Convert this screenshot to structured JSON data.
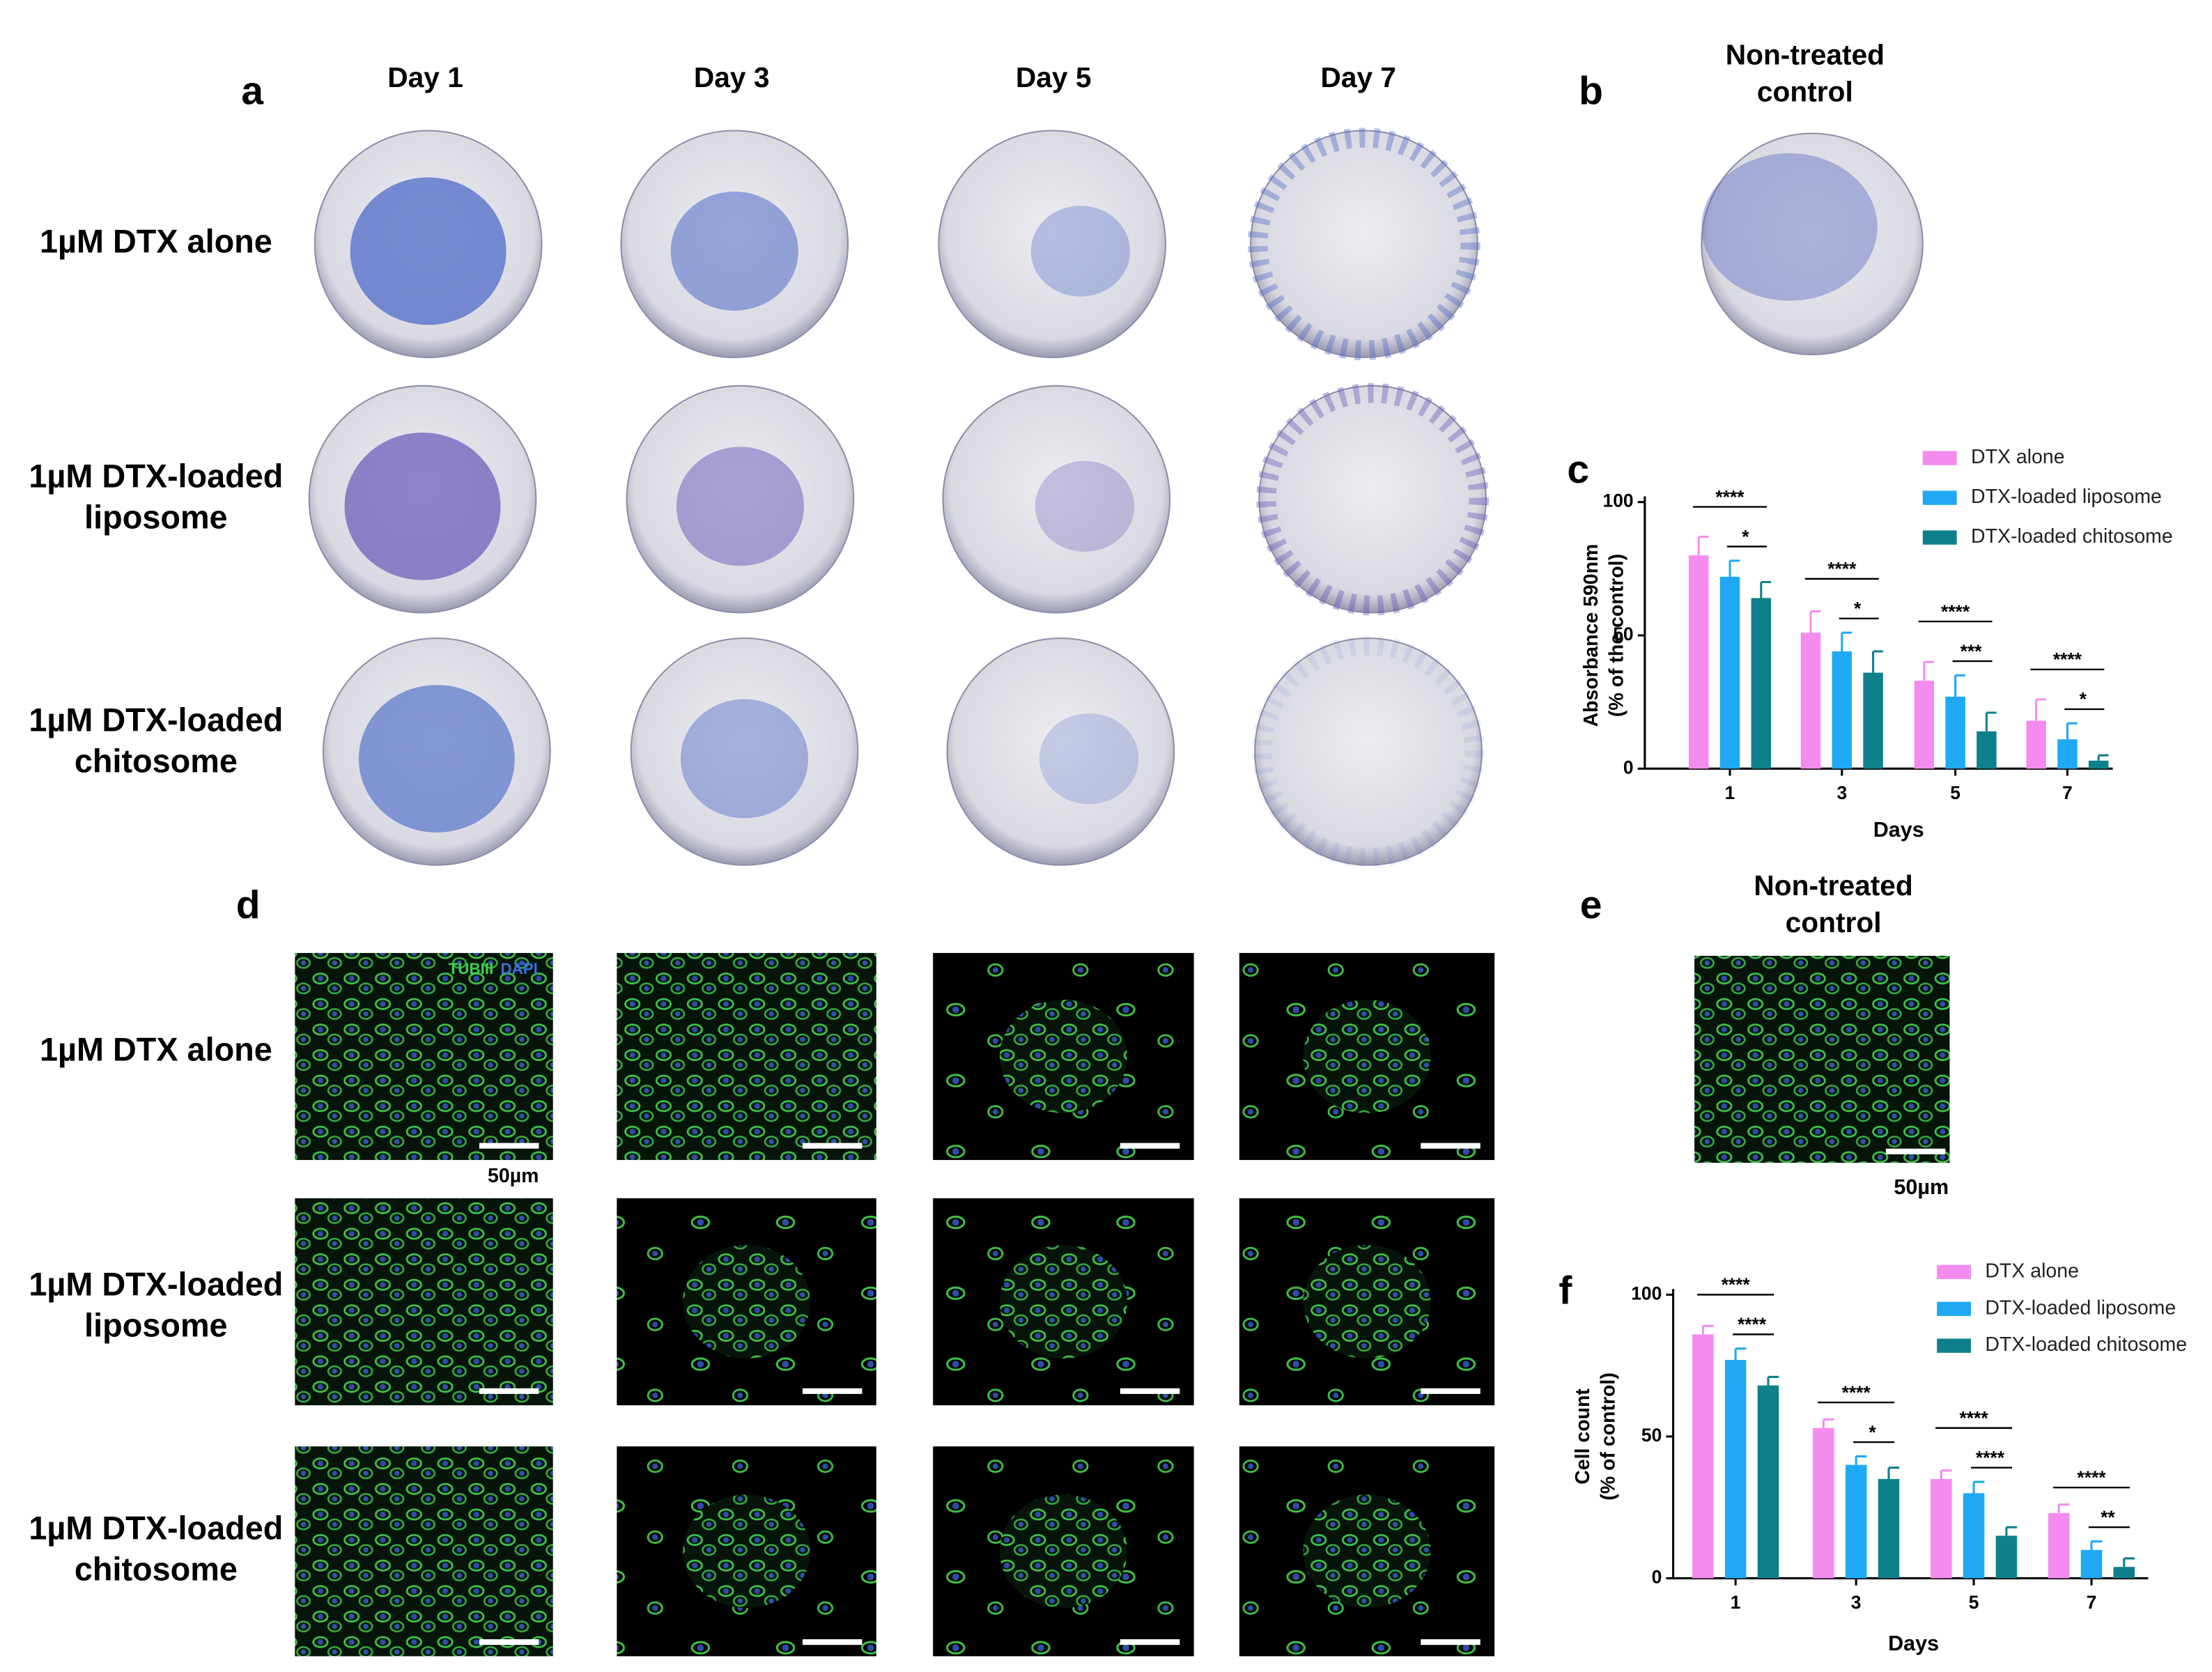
{
  "figure": {
    "panel_labels": [
      "a",
      "b",
      "c",
      "d",
      "e",
      "f"
    ],
    "columns": [
      "Day 1",
      "Day 3",
      "Day 5",
      "Day 7"
    ],
    "rows": [
      [
        "1µM DTX alone"
      ],
      [
        "1µM DTX-loaded",
        "liposome"
      ],
      [
        "1µM DTX-loaded",
        "chitosome"
      ]
    ],
    "control_label": [
      "Non-treated",
      "control"
    ],
    "stain_labels": [
      "TUBIII",
      "DAPI"
    ],
    "scale_bar": "50µm"
  },
  "chart_data": [
    {
      "type": "bar",
      "xlabel": "Days",
      "ylabel": [
        "Absorbance 590nm",
        "(% of the control)"
      ],
      "categories": [
        "1",
        "3",
        "5",
        "7"
      ],
      "ylim": [
        0,
        100
      ],
      "yticks": [
        0,
        50,
        100
      ],
      "legend": "top-right",
      "series": [
        {
          "name": "DTX alone",
          "color": "#f48cf0",
          "values": [
            80,
            51,
            33,
            18
          ],
          "errors": [
            7,
            8,
            7,
            8
          ]
        },
        {
          "name": "DTX-loaded liposome",
          "color": "#1fa9f4",
          "values": [
            72,
            44,
            27,
            11
          ],
          "errors": [
            6,
            7,
            8,
            6
          ]
        },
        {
          "name": "DTX-loaded chitosome",
          "color": "#0e808c",
          "values": [
            64,
            36,
            14,
            3
          ],
          "errors": [
            6,
            8,
            7,
            2
          ]
        }
      ],
      "significance": [
        [
          "****",
          "*"
        ],
        [
          "****",
          "*"
        ],
        [
          "****",
          "***"
        ],
        [
          "****",
          "*"
        ]
      ]
    },
    {
      "type": "bar",
      "xlabel": "Days",
      "ylabel": [
        "Cell count",
        "(% of control)"
      ],
      "categories": [
        "1",
        "3",
        "5",
        "7"
      ],
      "ylim": [
        0,
        100
      ],
      "yticks": [
        0,
        50,
        100
      ],
      "legend": "top-right",
      "series": [
        {
          "name": "DTX alone",
          "color": "#f48cf0",
          "values": [
            86,
            53,
            35,
            23
          ],
          "errors": [
            3,
            3,
            3,
            3
          ]
        },
        {
          "name": "DTX-loaded liposome",
          "color": "#1fa9f4",
          "values": [
            77,
            40,
            30,
            10
          ],
          "errors": [
            4,
            3,
            4,
            3
          ]
        },
        {
          "name": "DTX-loaded chitosome",
          "color": "#0e808c",
          "values": [
            68,
            35,
            15,
            4
          ],
          "errors": [
            3,
            4,
            3,
            3
          ]
        }
      ],
      "significance": [
        [
          "****",
          "****"
        ],
        [
          "****",
          "*"
        ],
        [
          "****",
          "****"
        ],
        [
          "****",
          "**"
        ]
      ]
    }
  ]
}
